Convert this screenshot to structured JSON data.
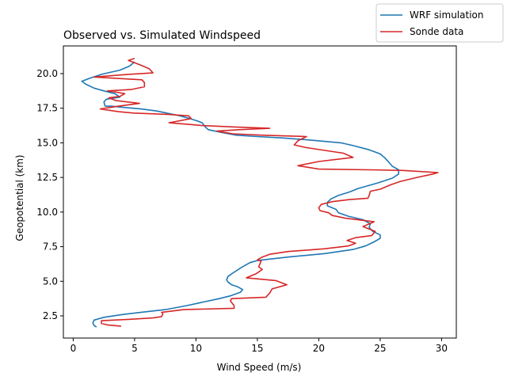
{
  "chart_data": {
    "type": "line",
    "title": "Observed vs. Simulated Windspeed",
    "xlabel": "Wind Speed (m/s)",
    "ylabel": "Geopotential (km)",
    "xlim": [
      -0.8,
      31.2
    ],
    "ylim": [
      0.9,
      22.0
    ],
    "xticks": [
      0,
      5,
      10,
      15,
      20,
      25,
      30
    ],
    "yticks": [
      2.5,
      5.0,
      7.5,
      10.0,
      12.5,
      15.0,
      17.5,
      20.0
    ],
    "xtick_labels": [
      "0",
      "5",
      "10",
      "15",
      "20",
      "25",
      "30"
    ],
    "ytick_labels": [
      "2.5",
      "5.0",
      "7.5",
      "10.0",
      "12.5",
      "15.0",
      "17.5",
      "20.0"
    ],
    "legend_position": "top-right (outside axes)",
    "series": [
      {
        "name": "WRF simulation",
        "color": "#1f77b4",
        "points": [
          [
            1.9,
            1.7
          ],
          [
            1.7,
            1.8
          ],
          [
            1.6,
            2.0
          ],
          [
            1.7,
            2.2
          ],
          [
            2.5,
            2.4
          ],
          [
            4.0,
            2.6
          ],
          [
            5.5,
            2.75
          ],
          [
            7.5,
            2.95
          ],
          [
            9.3,
            3.25
          ],
          [
            10.6,
            3.5
          ],
          [
            11.9,
            3.75
          ],
          [
            12.8,
            3.95
          ],
          [
            13.6,
            4.2
          ],
          [
            13.8,
            4.4
          ],
          [
            13.4,
            4.6
          ],
          [
            12.9,
            4.75
          ],
          [
            12.6,
            4.95
          ],
          [
            12.5,
            5.1
          ],
          [
            12.6,
            5.35
          ],
          [
            13.1,
            5.65
          ],
          [
            13.7,
            6.0
          ],
          [
            14.4,
            6.35
          ],
          [
            15.0,
            6.5
          ],
          [
            17.5,
            6.75
          ],
          [
            20.5,
            7.0
          ],
          [
            22.8,
            7.3
          ],
          [
            23.8,
            7.55
          ],
          [
            24.5,
            7.85
          ],
          [
            25.0,
            8.1
          ],
          [
            25.0,
            8.35
          ],
          [
            24.4,
            8.6
          ],
          [
            24.1,
            8.9
          ],
          [
            24.2,
            9.15
          ],
          [
            23.6,
            9.45
          ],
          [
            22.4,
            9.7
          ],
          [
            21.6,
            9.95
          ],
          [
            21.4,
            10.2
          ],
          [
            20.7,
            10.45
          ],
          [
            20.7,
            10.7
          ],
          [
            21.0,
            10.95
          ],
          [
            21.6,
            11.2
          ],
          [
            22.5,
            11.45
          ],
          [
            23.2,
            11.7
          ],
          [
            24.8,
            12.1
          ],
          [
            26.0,
            12.45
          ],
          [
            26.5,
            12.75
          ],
          [
            26.5,
            13.05
          ],
          [
            26.0,
            13.3
          ],
          [
            25.7,
            13.6
          ],
          [
            25.4,
            13.9
          ],
          [
            25.0,
            14.2
          ],
          [
            24.1,
            14.5
          ],
          [
            22.8,
            14.8
          ],
          [
            21.8,
            15.0
          ],
          [
            19.3,
            15.2
          ],
          [
            17.1,
            15.35
          ],
          [
            15.0,
            15.45
          ],
          [
            13.3,
            15.55
          ],
          [
            12.1,
            15.75
          ],
          [
            11.0,
            15.95
          ],
          [
            10.7,
            16.2
          ],
          [
            10.5,
            16.45
          ],
          [
            10.2,
            16.55
          ],
          [
            9.5,
            16.75
          ],
          [
            8.7,
            16.95
          ],
          [
            7.6,
            17.15
          ],
          [
            6.8,
            17.3
          ],
          [
            5.5,
            17.45
          ],
          [
            4.2,
            17.55
          ],
          [
            3.1,
            17.65
          ],
          [
            2.6,
            17.65
          ],
          [
            2.5,
            17.95
          ],
          [
            2.7,
            18.15
          ],
          [
            3.8,
            18.3
          ],
          [
            3.4,
            18.55
          ],
          [
            2.5,
            18.75
          ],
          [
            1.7,
            18.95
          ],
          [
            1.0,
            19.25
          ],
          [
            0.7,
            19.45
          ],
          [
            1.3,
            19.65
          ],
          [
            2.3,
            19.95
          ],
          [
            3.8,
            20.25
          ],
          [
            4.6,
            20.55
          ],
          [
            5.0,
            20.85
          ]
        ]
      },
      {
        "name": "Sonde data",
        "color": "#d62728",
        "points": [
          [
            3.9,
            1.75
          ],
          [
            2.8,
            1.85
          ],
          [
            2.3,
            1.95
          ],
          [
            2.3,
            2.15
          ],
          [
            4.5,
            2.25
          ],
          [
            6.5,
            2.35
          ],
          [
            7.2,
            2.45
          ],
          [
            7.3,
            2.65
          ],
          [
            7.2,
            2.75
          ],
          [
            9.0,
            2.95
          ],
          [
            13.1,
            3.05
          ],
          [
            13.1,
            3.25
          ],
          [
            13.0,
            3.35
          ],
          [
            12.8,
            3.6
          ],
          [
            12.9,
            3.75
          ],
          [
            15.7,
            3.85
          ],
          [
            16.0,
            4.15
          ],
          [
            16.2,
            4.45
          ],
          [
            17.4,
            4.75
          ],
          [
            16.5,
            5.05
          ],
          [
            14.1,
            5.25
          ],
          [
            14.9,
            5.55
          ],
          [
            15.4,
            5.85
          ],
          [
            15.1,
            6.05
          ],
          [
            15.3,
            6.45
          ],
          [
            15.0,
            6.55
          ],
          [
            15.4,
            6.75
          ],
          [
            16.0,
            6.95
          ],
          [
            17.5,
            7.15
          ],
          [
            20.5,
            7.35
          ],
          [
            22.4,
            7.55
          ],
          [
            23.0,
            7.75
          ],
          [
            22.3,
            7.95
          ],
          [
            23.0,
            8.15
          ],
          [
            24.3,
            8.3
          ],
          [
            24.6,
            8.6
          ],
          [
            23.6,
            8.95
          ],
          [
            24.5,
            9.3
          ],
          [
            22.2,
            9.55
          ],
          [
            21.1,
            9.75
          ],
          [
            20.8,
            9.95
          ],
          [
            20.1,
            10.1
          ],
          [
            20.0,
            10.3
          ],
          [
            20.2,
            10.55
          ],
          [
            21.1,
            10.75
          ],
          [
            22.5,
            10.9
          ],
          [
            24.0,
            11.0
          ],
          [
            24.1,
            11.2
          ],
          [
            24.2,
            11.5
          ],
          [
            25.0,
            11.65
          ],
          [
            25.8,
            11.95
          ],
          [
            26.6,
            12.2
          ],
          [
            28.0,
            12.5
          ],
          [
            29.3,
            12.75
          ],
          [
            29.7,
            12.85
          ],
          [
            27.0,
            13.0
          ],
          [
            24.2,
            13.05
          ],
          [
            20.0,
            13.1
          ],
          [
            18.3,
            13.35
          ],
          [
            20.0,
            13.65
          ],
          [
            22.8,
            13.95
          ],
          [
            22.0,
            14.25
          ],
          [
            20.5,
            14.45
          ],
          [
            19.0,
            14.65
          ],
          [
            18.0,
            14.85
          ],
          [
            18.3,
            15.15
          ],
          [
            19.0,
            15.45
          ],
          [
            15.5,
            15.55
          ],
          [
            13.0,
            15.65
          ],
          [
            11.7,
            15.85
          ],
          [
            13.5,
            15.95
          ],
          [
            16.0,
            16.05
          ],
          [
            13.0,
            16.15
          ],
          [
            10.5,
            16.25
          ],
          [
            9.2,
            16.35
          ],
          [
            7.8,
            16.45
          ],
          [
            9.6,
            16.75
          ],
          [
            9.4,
            16.95
          ],
          [
            7.8,
            17.05
          ],
          [
            4.9,
            17.15
          ],
          [
            3.7,
            17.25
          ],
          [
            2.2,
            17.45
          ],
          [
            3.7,
            17.65
          ],
          [
            5.4,
            17.85
          ],
          [
            3.5,
            18.05
          ],
          [
            2.9,
            18.25
          ],
          [
            3.8,
            18.35
          ],
          [
            4.2,
            18.55
          ],
          [
            3.6,
            18.65
          ],
          [
            2.8,
            18.75
          ],
          [
            4.7,
            18.85
          ],
          [
            5.8,
            19.05
          ],
          [
            5.8,
            19.35
          ],
          [
            5.6,
            19.55
          ],
          [
            1.7,
            19.75
          ],
          [
            4.5,
            19.95
          ],
          [
            6.5,
            20.05
          ],
          [
            6.2,
            20.35
          ],
          [
            5.4,
            20.65
          ],
          [
            4.5,
            20.95
          ],
          [
            5.0,
            21.1
          ]
        ]
      }
    ]
  }
}
